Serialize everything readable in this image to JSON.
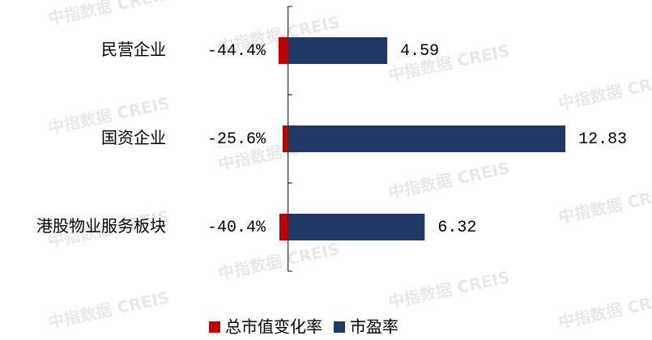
{
  "chart_data": {
    "type": "hbar",
    "categories": [
      "民营企业",
      "国资企业",
      "港股物业服务板块"
    ],
    "series": [
      {
        "name": "总市值变化率",
        "color": "#c00000",
        "axis": "x2",
        "values": [
          -44.4,
          -25.6,
          -40.4
        ],
        "value_labels": [
          "-44.4%",
          "-25.6%",
          "-40.4%"
        ]
      },
      {
        "name": "市盈率",
        "color": "#1f3864",
        "values": [
          4.59,
          12.83,
          6.32
        ]
      }
    ],
    "xlim": [
      -1,
      15
    ],
    "x2lim": [
      -100,
      1500
    ],
    "legend": "bottom",
    "watermark": "中指数据 CREIS"
  }
}
